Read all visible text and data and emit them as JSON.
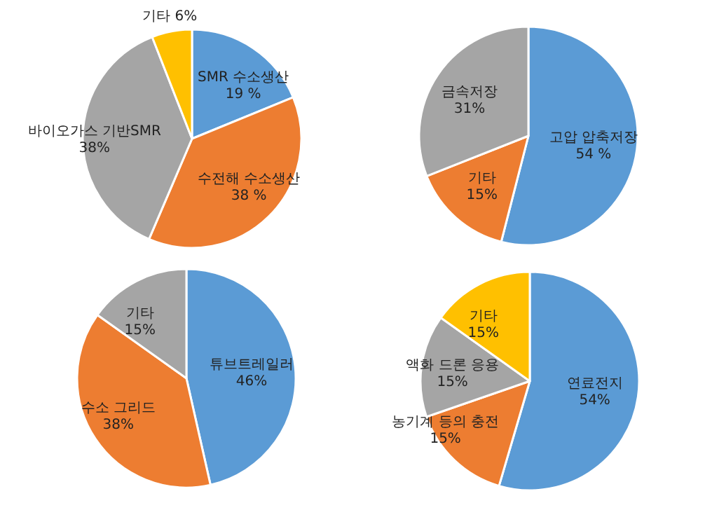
{
  "chart_data": [
    {
      "type": "pie",
      "categories": [
        "SMR 수소생산",
        "수전해 수소생산",
        "바이오가스 기반SMR",
        "기타"
      ],
      "values": [
        19,
        38,
        38,
        6
      ],
      "value_labels": [
        "19 %",
        "38 %",
        "38%",
        "6%"
      ],
      "colors": [
        "#5b9bd5",
        "#ed7d31",
        "#a5a5a5",
        "#ffc000"
      ]
    },
    {
      "type": "pie",
      "categories": [
        "고압 압축저장",
        "기타",
        "금속저장"
      ],
      "values": [
        54,
        15,
        31
      ],
      "value_labels": [
        "54 %",
        "15%",
        "31%"
      ],
      "colors": [
        "#5b9bd5",
        "#ed7d31",
        "#a5a5a5"
      ]
    },
    {
      "type": "pie",
      "categories": [
        "튜브트레일러",
        "수소 그리드",
        "기타"
      ],
      "values": [
        46,
        38,
        15
      ],
      "value_labels": [
        "46%",
        "38%",
        "15%"
      ],
      "colors": [
        "#5b9bd5",
        "#ed7d31",
        "#a5a5a5"
      ]
    },
    {
      "type": "pie",
      "categories": [
        "연료전지",
        "농기계 등의 충전",
        "액화 드론 응용",
        "기타"
      ],
      "values": [
        54,
        15,
        15,
        15
      ],
      "value_labels": [
        "54%",
        "15%",
        "15%",
        "15%"
      ],
      "colors": [
        "#5b9bd5",
        "#ed7d31",
        "#a5a5a5",
        "#ffc000"
      ]
    }
  ]
}
